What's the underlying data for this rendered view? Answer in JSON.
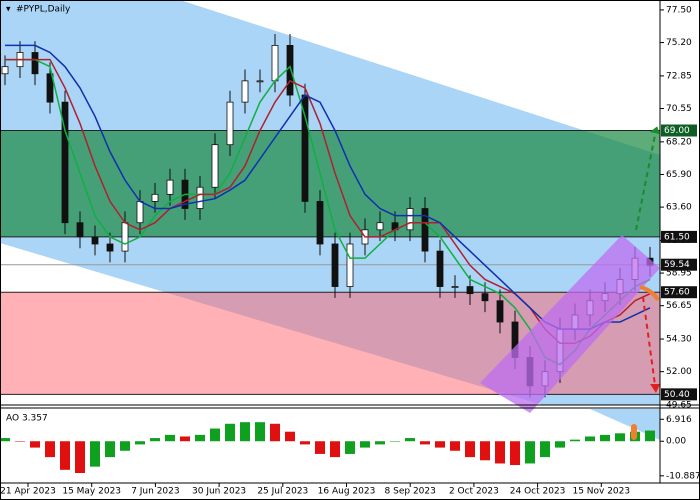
{
  "chart_data": [
    {
      "type": "candlestick",
      "title": "#PYPL,Daily",
      "open": [
        73.0,
        73.5,
        74.5,
        73.0,
        71.0,
        62.5,
        61.5,
        61.0,
        60.5,
        62.5,
        64.0,
        64.5,
        65.5,
        63.5,
        65.0,
        68.0,
        71.0,
        72.5,
        72.5,
        75.0,
        71.5,
        64.0,
        61.0,
        58.0,
        61.0,
        62.0,
        62.5,
        62.0,
        63.5,
        60.5,
        58.0,
        58.0,
        57.5,
        57.0,
        55.5,
        53.0,
        51.0,
        52.0,
        55.0,
        56.0,
        57.0,
        57.5,
        58.5,
        60.0
      ],
      "high": [
        74.3,
        75.3,
        75.3,
        73.8,
        71.8,
        63.3,
        62.3,
        61.8,
        63.3,
        64.8,
        65.3,
        66.3,
        66.3,
        65.8,
        68.8,
        71.8,
        73.3,
        73.3,
        75.8,
        75.8,
        72.3,
        64.8,
        61.8,
        61.8,
        62.8,
        63.3,
        63.3,
        64.3,
        64.3,
        61.3,
        58.8,
        58.8,
        58.3,
        57.8,
        56.3,
        53.8,
        52.8,
        55.8,
        56.8,
        57.8,
        58.3,
        59.3,
        60.8,
        60.8
      ],
      "low": [
        72.2,
        72.7,
        72.2,
        70.2,
        61.7,
        60.7,
        60.2,
        59.7,
        59.7,
        61.7,
        63.2,
        63.7,
        62.7,
        62.7,
        64.2,
        67.2,
        70.2,
        71.7,
        71.7,
        70.7,
        63.2,
        60.2,
        57.2,
        57.2,
        60.2,
        61.2,
        61.2,
        61.2,
        59.7,
        57.2,
        57.2,
        56.7,
        56.2,
        54.7,
        52.2,
        50.2,
        50.2,
        51.2,
        54.2,
        55.2,
        56.2,
        56.7,
        57.7,
        58.7
      ],
      "close": [
        73.5,
        74.5,
        73.0,
        71.0,
        62.5,
        61.5,
        61.0,
        60.5,
        62.5,
        64.0,
        64.5,
        65.5,
        63.5,
        65.0,
        68.0,
        71.0,
        72.5,
        72.5,
        75.0,
        71.5,
        64.0,
        61.0,
        58.0,
        61.0,
        62.0,
        62.5,
        62.0,
        63.5,
        60.5,
        58.0,
        58.0,
        57.5,
        57.0,
        55.5,
        53.0,
        51.0,
        52.0,
        55.0,
        56.0,
        57.0,
        57.5,
        58.5,
        60.0,
        59.5
      ],
      "up_color": "#ffffff",
      "down_color": "#111111",
      "series": [
        {
          "color": "#10b040",
          "values": [
            74,
            74,
            74,
            73.5,
            69,
            66,
            63,
            61.5,
            61,
            61.5,
            63,
            64,
            64.5,
            64.5,
            64.5,
            66,
            68.5,
            71,
            72.5,
            73.5,
            70,
            66,
            62,
            60,
            60,
            61,
            62,
            62.5,
            62.5,
            61.5,
            60,
            58.5,
            58,
            57.5,
            56.5,
            55,
            53,
            52.5,
            53.5,
            55,
            56,
            57,
            58,
            58.5
          ]
        },
        {
          "color": "#b02030",
          "values": [
            74,
            74,
            74,
            74,
            72,
            69.5,
            66.5,
            64,
            62.5,
            62,
            62.5,
            63.5,
            64,
            64.5,
            64.5,
            65,
            66.5,
            69,
            71,
            72.5,
            72,
            69.5,
            66,
            63,
            61.5,
            61.5,
            62,
            62.5,
            62.5,
            62.5,
            61,
            59.5,
            58.5,
            58,
            57.5,
            56.5,
            55,
            54,
            54,
            54.5,
            55.5,
            56,
            57,
            57.5
          ]
        },
        {
          "color": "#1030b0",
          "values": [
            75,
            75,
            75,
            74.5,
            73.5,
            72,
            70,
            67.5,
            65.5,
            64,
            63.5,
            63.5,
            63.8,
            64,
            64.2,
            64.8,
            65.5,
            67,
            68.5,
            70,
            71.5,
            71,
            69,
            66.5,
            64.5,
            63.5,
            63,
            63,
            63,
            62.5,
            61.5,
            60.5,
            59.5,
            58.5,
            57.5,
            56.5,
            55.5,
            55,
            55,
            55,
            55.5,
            55.5,
            56,
            56.5
          ]
        }
      ],
      "ylim": [
        49.65,
        78.2
      ],
      "yticks": [
        {
          "value": 77.5,
          "label": "77.50"
        },
        {
          "value": 75.2,
          "label": "75.20"
        },
        {
          "value": 72.85,
          "label": "72.85"
        },
        {
          "value": 70.55,
          "label": "70.55"
        },
        {
          "value": 68.2,
          "label": "68.20"
        },
        {
          "value": 65.9,
          "label": "65.90"
        },
        {
          "value": 63.6,
          "label": "63.60"
        },
        {
          "value": 61.25,
          "label": "61.25"
        },
        {
          "value": 58.95,
          "label": "58.95"
        },
        {
          "value": 56.65,
          "label": "56.65"
        },
        {
          "value": 54.3,
          "label": "54.30"
        },
        {
          "value": 52,
          "label": "52.00"
        },
        {
          "value": 49.65,
          "label": "49.65"
        }
      ],
      "levels": [
        {
          "value": 69,
          "label": "69.00"
        },
        {
          "value": 61.5,
          "label": "61.50"
        },
        {
          "value": 59.54,
          "label": "59.54"
        },
        {
          "value": 57.6,
          "label": "57.60"
        },
        {
          "value": 50.4,
          "label": "50.40"
        }
      ],
      "x_labels": [
        "21 Apr 2023",
        "15 May 2023",
        "7 Jun 2023",
        "30 Jun 2023",
        "25 Jul 2023",
        "16 Aug 2023",
        "8 Sep 2023",
        "2 Oct 2023",
        "24 Oct 2023",
        "15 Nov 2023"
      ]
    },
    {
      "type": "bar",
      "title": "AO 3.357",
      "up_color": "#10a020",
      "down_color": "#e01010",
      "values": [
        1,
        0,
        -2,
        -5,
        -9,
        -10,
        -8,
        -5,
        -3,
        -1,
        1,
        2,
        1.5,
        2,
        4,
        5.5,
        6,
        6,
        5.5,
        3,
        -1,
        -4,
        -5,
        -4,
        -2,
        -1,
        0,
        1,
        -1,
        -2,
        -3,
        -5,
        -6,
        -7,
        -7.5,
        -7,
        -5,
        -2,
        0.5,
        1.5,
        2,
        2.5,
        3,
        3.357
      ],
      "ylim": [
        -13.15,
        10.15
      ],
      "yticks": [
        6.916,
        {
          "value": 0,
          "label": "0.00"
        },
        -10.887
      ]
    }
  ]
}
